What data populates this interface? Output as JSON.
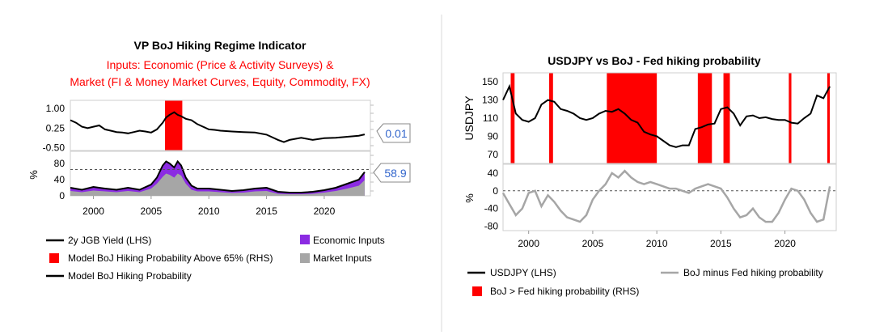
{
  "chart_data": [
    {
      "type": "line",
      "title": "VP BoJ Hiking Regime Indicator",
      "subtitle_lines": [
        "Inputs: Economic (Price & Activity Surveys) &",
        "Market (FI & Money Market Curves, Equity, Commodity, FX)"
      ],
      "x_ticks": [
        "2000",
        "2005",
        "2010",
        "2015",
        "2020"
      ],
      "xlim": [
        1998,
        2024
      ],
      "top_panel": {
        "yticks": [
          "1.00",
          "0.25",
          "-0.50"
        ],
        "ylim": [
          -0.6,
          1.3
        ],
        "series_name": "2y JGB Yield (LHS)",
        "x": [
          1998.0,
          1998.5,
          1999.0,
          1999.5,
          2000.0,
          2000.5,
          2001.0,
          2001.5,
          2002.0,
          2002.5,
          2003.0,
          2003.5,
          2004.0,
          2004.5,
          2005.0,
          2005.5,
          2006.0,
          2006.3,
          2006.6,
          2007.0,
          2007.3,
          2007.6,
          2008.0,
          2008.5,
          2009.0,
          2009.5,
          2010.0,
          2010.5,
          2011.0,
          2012.0,
          2013.0,
          2014.0,
          2015.0,
          2016.0,
          2016.5,
          2017.0,
          2018.0,
          2019.0,
          2020.0,
          2021.0,
          2022.0,
          2023.0,
          2023.5
        ],
        "y": [
          0.55,
          0.45,
          0.3,
          0.25,
          0.3,
          0.35,
          0.2,
          0.15,
          0.1,
          0.08,
          0.05,
          0.1,
          0.15,
          0.12,
          0.08,
          0.2,
          0.45,
          0.65,
          0.75,
          0.85,
          0.75,
          0.7,
          0.6,
          0.55,
          0.4,
          0.3,
          0.2,
          0.18,
          0.15,
          0.12,
          0.1,
          0.08,
          0.0,
          -0.2,
          -0.28,
          -0.2,
          -0.12,
          -0.2,
          -0.13,
          -0.12,
          -0.08,
          -0.04,
          0.01
        ]
      },
      "bottom_panel": {
        "ylabel": "%",
        "yticks": [
          "80",
          "40",
          "0"
        ],
        "ylim": [
          0,
          110
        ],
        "threshold": 65,
        "line_name": "Model BoJ Hiking Probability",
        "x": [
          1998,
          1999,
          2000,
          2001,
          2002,
          2003,
          2004,
          2005,
          2005.5,
          2006,
          2006.3,
          2006.6,
          2007,
          2007.3,
          2007.6,
          2008,
          2008.5,
          2009,
          2010,
          2011,
          2012,
          2013,
          2014,
          2015,
          2016,
          2017,
          2018,
          2019,
          2020,
          2021,
          2022,
          2023,
          2023.5
        ],
        "total": [
          20,
          15,
          22,
          18,
          15,
          20,
          15,
          28,
          45,
          75,
          85,
          80,
          70,
          85,
          75,
          45,
          25,
          18,
          18,
          15,
          12,
          14,
          18,
          20,
          10,
          8,
          8,
          10,
          14,
          20,
          30,
          40,
          58.9
        ],
        "economic": [
          8,
          6,
          9,
          7,
          6,
          8,
          6,
          10,
          15,
          28,
          30,
          28,
          25,
          30,
          25,
          15,
          10,
          7,
          7,
          6,
          5,
          6,
          7,
          8,
          5,
          4,
          4,
          5,
          6,
          8,
          12,
          15,
          20
        ],
        "market": [
          12,
          9,
          13,
          11,
          9,
          12,
          9,
          18,
          30,
          47,
          55,
          52,
          45,
          55,
          50,
          30,
          15,
          11,
          11,
          9,
          7,
          8,
          11,
          12,
          5,
          4,
          4,
          5,
          8,
          12,
          18,
          25,
          38.9
        ]
      },
      "hiking_regimes": [
        [
          2006.2,
          2007.7
        ]
      ],
      "value_labels": {
        "jgb": "0.01",
        "probability": "58.9"
      },
      "legend": [
        {
          "label": "2y JGB Yield (LHS)",
          "kind": "line",
          "color": "#000000"
        },
        {
          "label": "Economic Inputs",
          "kind": "box",
          "color": "#8b2be2"
        },
        {
          "label": "Model BoJ Hiking Probability Above 65% (RHS)",
          "kind": "box",
          "color": "#ff0000"
        },
        {
          "label": "Market Inputs",
          "kind": "box",
          "color": "#a6a6a6"
        },
        {
          "label": "Model BoJ Hiking Probability",
          "kind": "line",
          "color": "#000000"
        }
      ]
    },
    {
      "type": "line",
      "title": "USDJPY vs BoJ - Fed hiking probability",
      "x_ticks": [
        "2000",
        "2005",
        "2010",
        "2015",
        "2020"
      ],
      "xlim": [
        1998,
        2024
      ],
      "top_panel": {
        "ylabel": "USDJPY",
        "yticks": [
          "150",
          "130",
          "110",
          "90",
          "70"
        ],
        "ylim": [
          60,
          160
        ],
        "series_name": "USDJPY (LHS)",
        "x": [
          1998.0,
          1998.5,
          1999.0,
          1999.5,
          2000.0,
          2000.5,
          2001.0,
          2001.5,
          2002.0,
          2002.5,
          2003.0,
          2003.5,
          2004.0,
          2004.5,
          2005.0,
          2005.5,
          2006.0,
          2006.5,
          2007.0,
          2007.5,
          2008.0,
          2008.5,
          2009.0,
          2009.5,
          2010.0,
          2010.5,
          2011.0,
          2011.5,
          2012.0,
          2012.5,
          2013.0,
          2013.5,
          2014.0,
          2014.5,
          2015.0,
          2015.5,
          2016.0,
          2016.5,
          2017.0,
          2017.5,
          2018.0,
          2018.5,
          2019.0,
          2019.5,
          2020.0,
          2020.5,
          2021.0,
          2021.5,
          2022.0,
          2022.5,
          2023.0,
          2023.5
        ],
        "y": [
          130,
          145,
          115,
          108,
          106,
          110,
          125,
          130,
          128,
          120,
          118,
          115,
          110,
          108,
          110,
          115,
          118,
          117,
          120,
          115,
          108,
          105,
          95,
          92,
          90,
          85,
          80,
          78,
          80,
          80,
          98,
          100,
          103,
          104,
          120,
          122,
          115,
          102,
          112,
          113,
          110,
          111,
          109,
          108,
          108,
          105,
          104,
          110,
          115,
          135,
          132,
          145
        ]
      },
      "bottom_panel": {
        "ylabel": "%",
        "yticks": [
          "40",
          "0",
          "-40",
          "-80"
        ],
        "ylim": [
          -90,
          60
        ],
        "zero_line": 0,
        "series_name": "BoJ minus Fed hiking probability",
        "x": [
          1998.0,
          1998.5,
          1999.0,
          1999.5,
          2000.0,
          2000.5,
          2001.0,
          2001.5,
          2002.0,
          2002.5,
          2003.0,
          2003.5,
          2004.0,
          2004.5,
          2005.0,
          2005.5,
          2006.0,
          2006.5,
          2007.0,
          2007.5,
          2008.0,
          2008.5,
          2009.0,
          2009.5,
          2010.0,
          2010.5,
          2011.0,
          2011.5,
          2012.0,
          2012.5,
          2013.0,
          2013.5,
          2014.0,
          2014.5,
          2015.0,
          2015.5,
          2016.0,
          2016.5,
          2017.0,
          2017.5,
          2018.0,
          2018.5,
          2019.0,
          2019.5,
          2020.0,
          2020.5,
          2021.0,
          2021.5,
          2022.0,
          2022.5,
          2023.0,
          2023.5
        ],
        "y": [
          -5,
          -30,
          -55,
          -40,
          -5,
          0,
          -35,
          -10,
          -25,
          -45,
          -60,
          -65,
          -70,
          -55,
          -20,
          0,
          15,
          40,
          30,
          45,
          30,
          20,
          15,
          20,
          15,
          10,
          5,
          5,
          0,
          -5,
          5,
          10,
          15,
          10,
          5,
          -15,
          -40,
          -60,
          -55,
          -40,
          -60,
          -70,
          -70,
          -50,
          -20,
          5,
          0,
          -20,
          -50,
          -70,
          -65,
          10
        ]
      },
      "regimes": [
        [
          1998.6,
          1998.9
        ],
        [
          2001.6,
          2001.9
        ],
        [
          2006.1,
          2010.0
        ],
        [
          2013.2,
          2014.3
        ],
        [
          2015.2,
          2015.7
        ],
        [
          2020.3,
          2020.5
        ],
        [
          2023.3,
          2023.5
        ]
      ],
      "legend": [
        {
          "label": "USDJPY (LHS)",
          "kind": "line",
          "color": "#000000"
        },
        {
          "label": "BoJ minus Fed hiking probability",
          "kind": "line",
          "color": "#a6a6a6"
        },
        {
          "label": "BoJ > Fed hiking probability (RHS)",
          "kind": "box",
          "color": "#ff0000"
        }
      ]
    }
  ]
}
